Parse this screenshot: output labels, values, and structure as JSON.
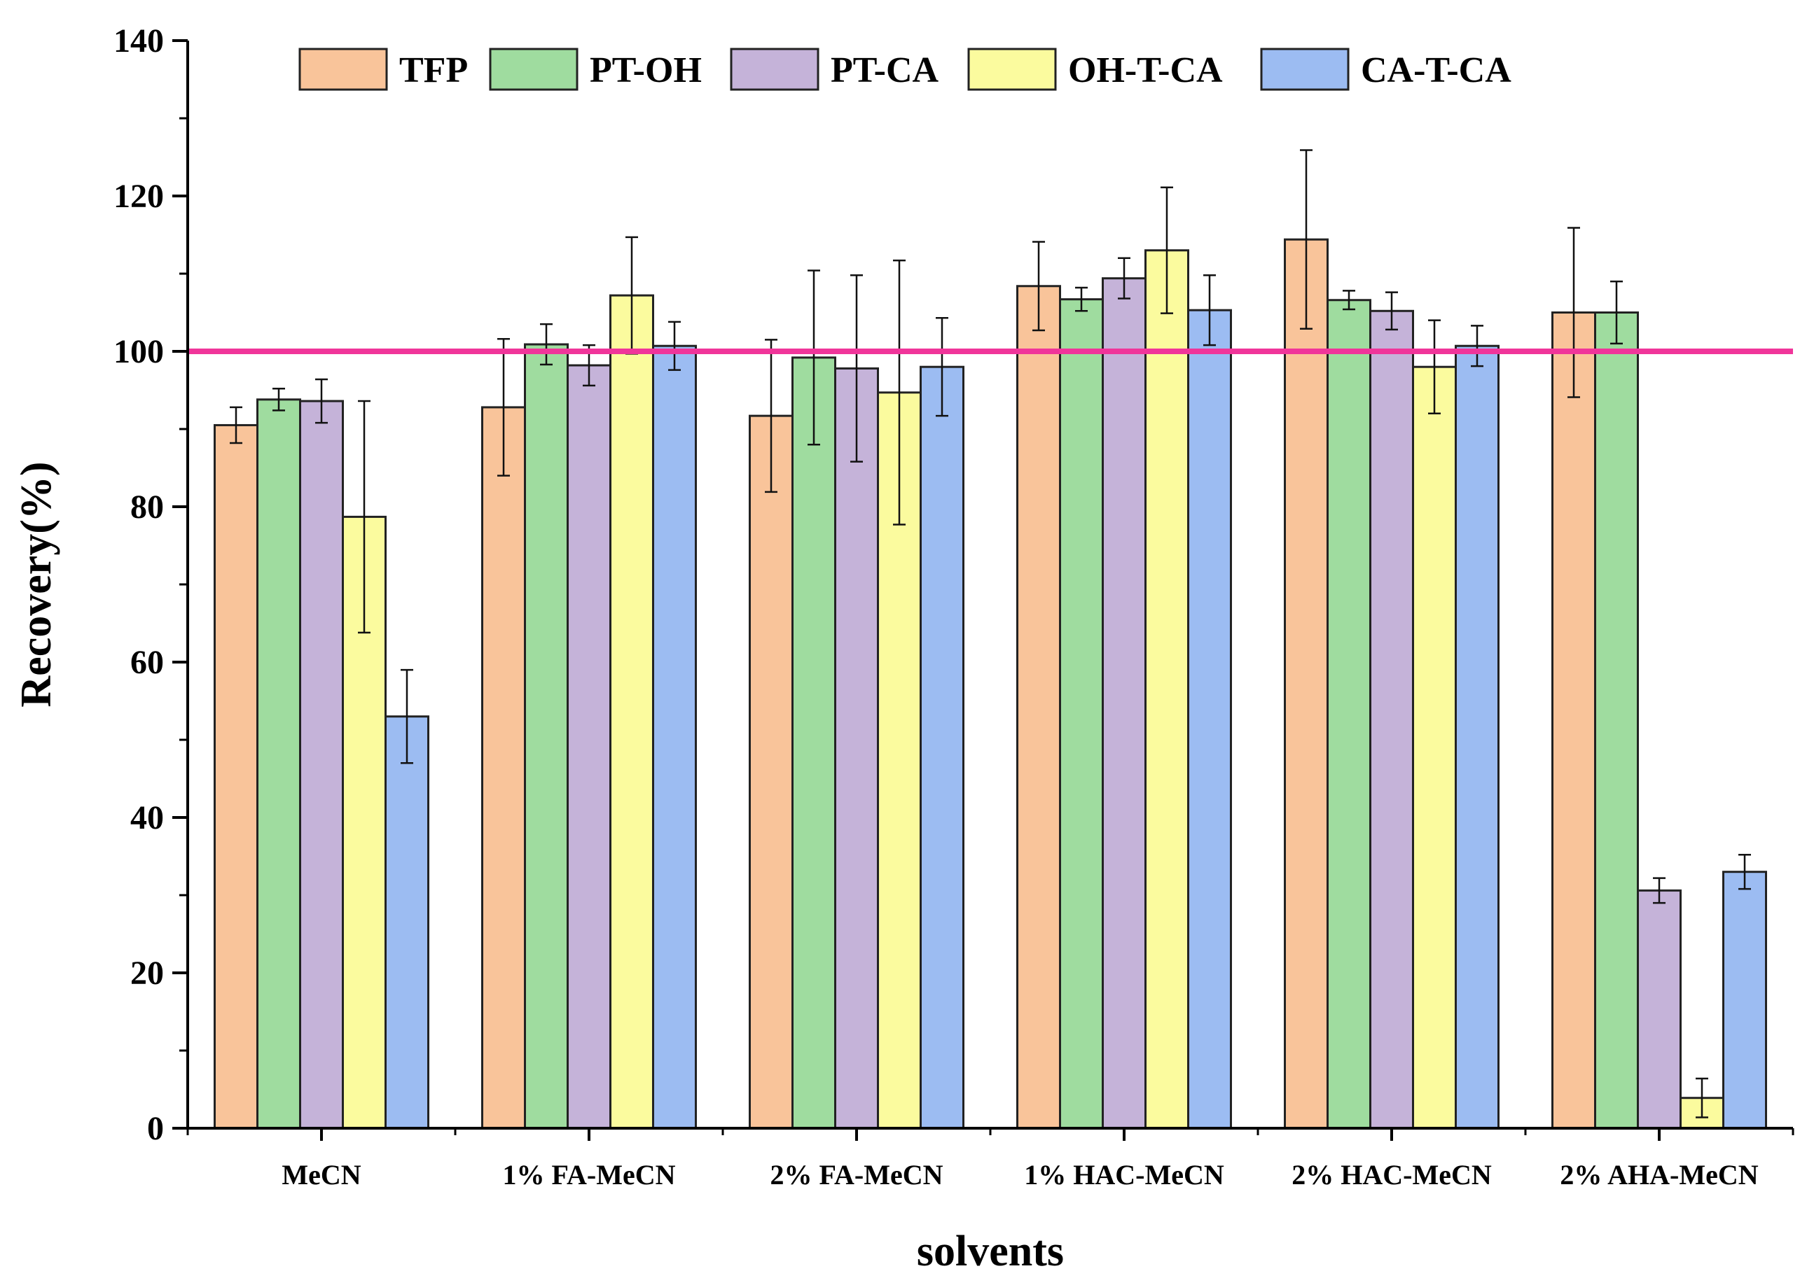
{
  "chart_data": {
    "type": "bar",
    "xlabel": "solvents",
    "ylabel": "Recovery(%)",
    "ylim": [
      0,
      140
    ],
    "yticks": [
      0,
      20,
      40,
      60,
      80,
      100,
      120,
      140
    ],
    "categories": [
      "MeCN",
      "1% FA-MeCN",
      "2% FA-MeCN",
      "1% HAC-MeCN",
      "2% HAC-MeCN",
      "2% AHA-MeCN"
    ],
    "reference_line": {
      "y": 100,
      "color": "#f0359a"
    },
    "legend_position": "top",
    "series": [
      {
        "name": "TFP",
        "color": "#f9c49a",
        "values": [
          90.5,
          92.8,
          91.7,
          108.4,
          114.4,
          105.0
        ],
        "errors": [
          2.3,
          8.8,
          9.8,
          5.7,
          11.5,
          10.9
        ]
      },
      {
        "name": "PT-OH",
        "color": "#9fdc9f",
        "values": [
          93.8,
          100.9,
          99.2,
          106.7,
          106.6,
          105.0
        ],
        "errors": [
          1.4,
          2.6,
          11.2,
          1.5,
          1.2,
          4.0
        ]
      },
      {
        "name": "PT-CA",
        "color": "#c5b3d9",
        "values": [
          93.6,
          98.2,
          97.8,
          109.4,
          105.2,
          30.6
        ],
        "errors": [
          2.8,
          2.6,
          12.0,
          2.6,
          2.4,
          1.6
        ]
      },
      {
        "name": "OH-T-CA",
        "color": "#fbfb9e",
        "values": [
          78.7,
          107.2,
          94.7,
          113.0,
          98.0,
          3.9
        ],
        "errors": [
          14.9,
          7.5,
          17.0,
          8.1,
          6.0,
          2.5
        ]
      },
      {
        "name": "CA-T-CA",
        "color": "#9cbcf2",
        "values": [
          53.0,
          100.7,
          98.0,
          105.3,
          100.7,
          33.0
        ],
        "errors": [
          6.0,
          3.1,
          6.3,
          4.5,
          2.6,
          2.2
        ]
      }
    ]
  }
}
